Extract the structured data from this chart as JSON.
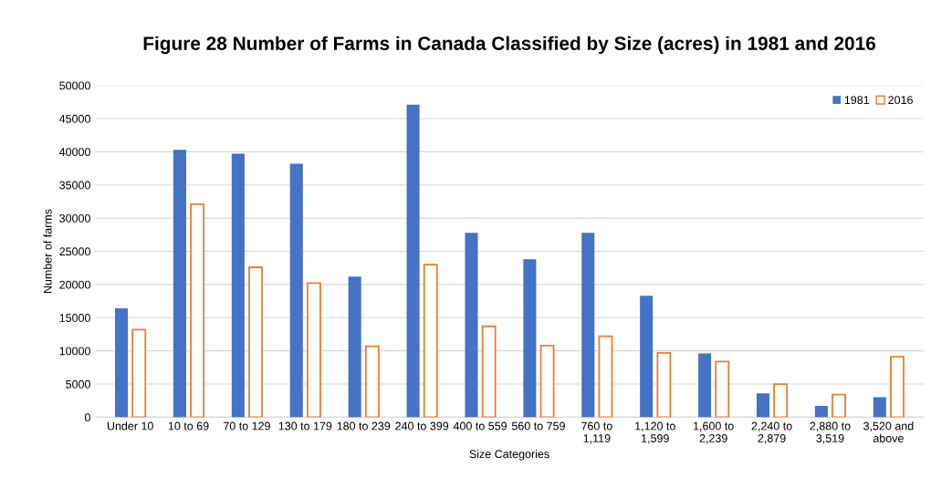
{
  "chart_data": {
    "type": "bar",
    "title": "Figure 28 Number of Farms in Canada Classified by Size (acres) in 1981 and 2016",
    "xlabel": "Size Categories",
    "ylabel": "Number of farms",
    "categories": [
      "Under 10",
      "10 to 69",
      "70 to 129",
      "130 to 179",
      "180 to 239",
      "240 to 399",
      "400 to 559",
      "560 to 759",
      "760 to\n1,119",
      "1,120 to\n1,599",
      "1,600 to\n2,239",
      "2,240 to\n2,879",
      "2,880 to\n3,519",
      "3,520 and\nabove"
    ],
    "series": [
      {
        "name": "1981",
        "color": "#4472c4",
        "values": [
          16400,
          40300,
          39700,
          38200,
          21200,
          47100,
          27800,
          23800,
          27800,
          18300,
          9600,
          3600,
          1700,
          3000
        ]
      },
      {
        "name": "2016",
        "color": "#ed7d31",
        "values": [
          13200,
          32100,
          22600,
          20200,
          10700,
          23000,
          13700,
          10800,
          12200,
          9700,
          8400,
          5000,
          3400,
          9100
        ]
      }
    ],
    "ylim": [
      0,
      50000
    ],
    "yticks": [
      0,
      5000,
      10000,
      15000,
      20000,
      25000,
      30000,
      35000,
      40000,
      45000,
      50000
    ],
    "grid": "y",
    "legend": "top right"
  }
}
